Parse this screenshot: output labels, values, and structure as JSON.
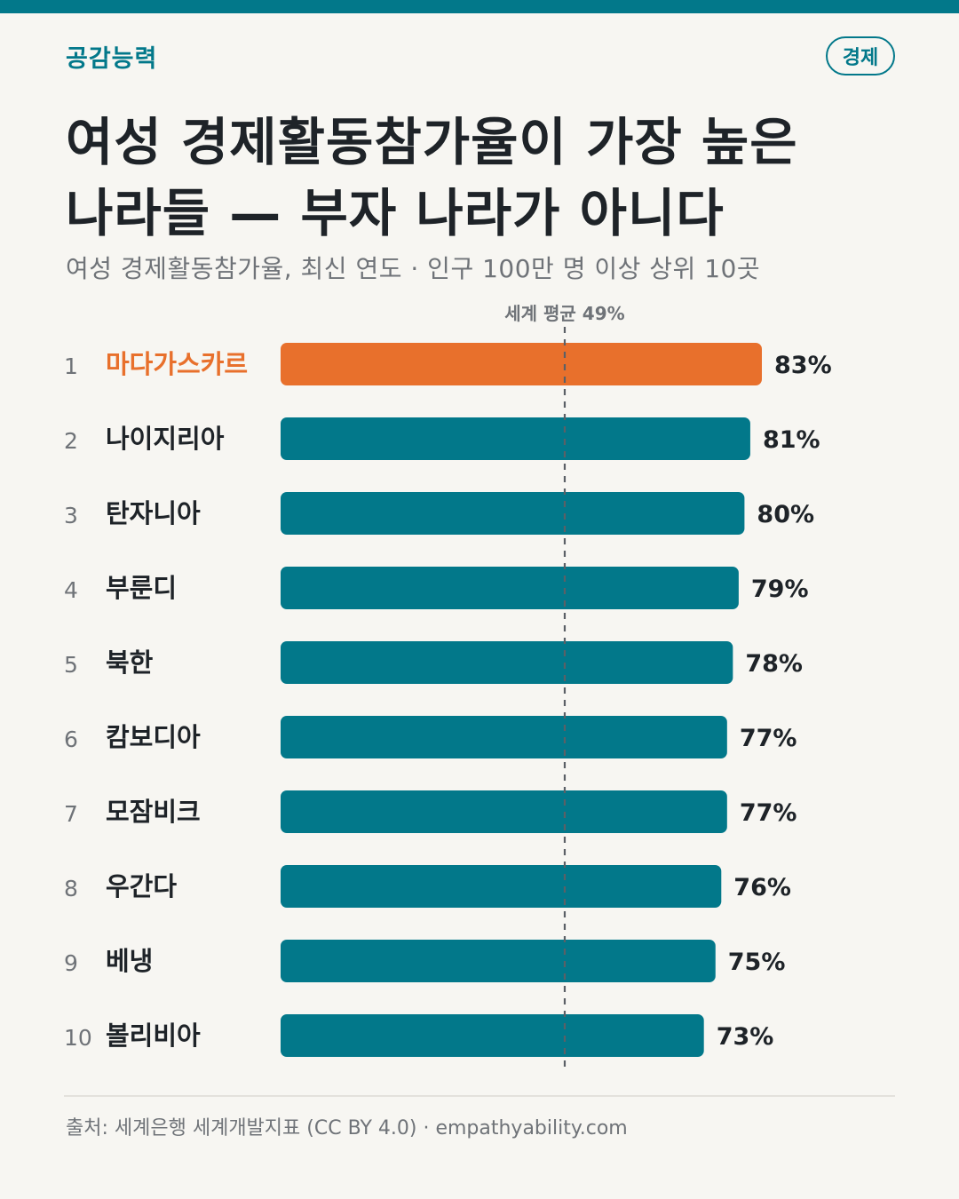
{
  "header": {
    "brand": "공감능력",
    "category": "경제"
  },
  "title_lines": [
    "여성 경제활동참가율이 가장 높은",
    "나라들 — 부자 나라가 아니다"
  ],
  "subtitle": "여성 경제활동참가율, 최신 연도 · 인구 100만 명 이상 상위 10곳",
  "colors": {
    "accent": "#02788a",
    "highlight": "#e8702c",
    "text": "#1e2328",
    "muted": "#6f7378",
    "background": "#f7f6f2",
    "average_line": "#5b6066"
  },
  "chart_data": {
    "type": "bar",
    "orientation": "horizontal",
    "unit": "%",
    "ranks": [
      "1",
      "2",
      "3",
      "4",
      "5",
      "6",
      "7",
      "8",
      "9",
      "10"
    ],
    "categories": [
      "마다가스카르",
      "나이지리아",
      "탄자니아",
      "부룬디",
      "북한",
      "캄보디아",
      "모잠비크",
      "우간다",
      "베냉",
      "볼리비아"
    ],
    "values": [
      83,
      81,
      80,
      79,
      78,
      77,
      77,
      76,
      75,
      73
    ],
    "value_labels": [
      "83%",
      "81%",
      "80%",
      "79%",
      "78%",
      "77%",
      "77%",
      "76%",
      "75%",
      "73%"
    ],
    "highlight_index": 0,
    "reference_line": {
      "value": 49,
      "label": "세계 평균 49%"
    },
    "xlim": [
      0,
      83
    ],
    "grid": false
  },
  "footer": {
    "source": "출처: 세계은행 세계개발지표 (CC BY 4.0) · empathyability.com"
  }
}
